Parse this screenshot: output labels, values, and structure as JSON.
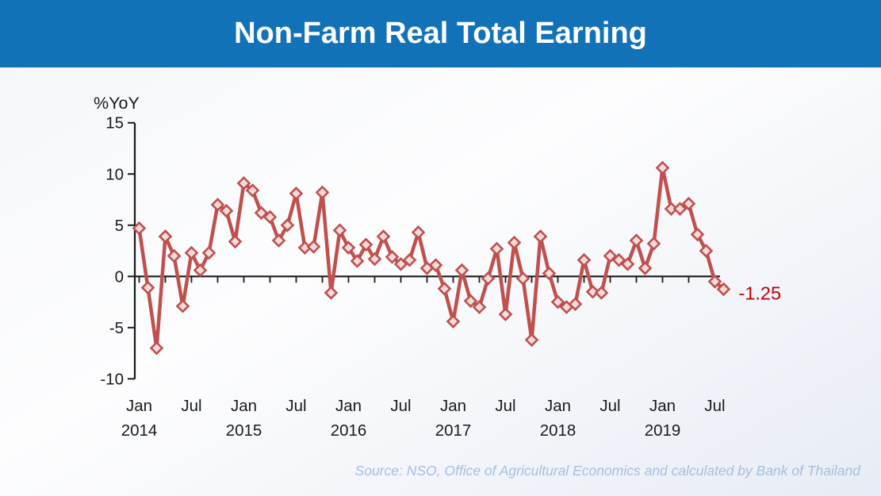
{
  "header": {
    "title": "Non-Farm Real Total Earning",
    "background_color": "#1272b8",
    "text_color": "#ffffff"
  },
  "footer": {
    "source": "Source: NSO, Office of Agricultural Economics and calculated by Bank of Thailand",
    "color": "#a7bedd"
  },
  "chart_data": {
    "type": "line",
    "title": "Non-Farm Real Total Earning",
    "ylabel": "%YoY",
    "xlabel": "",
    "ylim": [
      -10,
      15
    ],
    "yticks": [
      15,
      10,
      5,
      0,
      -5,
      -10
    ],
    "x_start": "Jan 2014",
    "frequency": "monthly",
    "grid": false,
    "legend": "none",
    "minor_tick_interval_months": 3,
    "series": [
      {
        "name": "Non-Farm Real Total Earning (%YoY)",
        "values": [
          4.7,
          -1.1,
          -7.0,
          3.9,
          2.0,
          -2.9,
          2.3,
          0.6,
          2.3,
          7.0,
          6.4,
          3.4,
          9.1,
          8.4,
          6.2,
          5.8,
          3.5,
          5.0,
          8.1,
          2.8,
          2.9,
          8.2,
          -1.6,
          4.5,
          2.8,
          1.5,
          3.1,
          1.7,
          3.9,
          1.9,
          1.2,
          1.6,
          4.3,
          0.8,
          1.1,
          -1.2,
          -4.4,
          0.6,
          -2.4,
          -3.0,
          -0.2,
          2.7,
          -3.7,
          3.3,
          -0.2,
          -6.2,
          3.9,
          0.3,
          -2.5,
          -3.0,
          -2.7,
          1.6,
          -1.5,
          -1.6,
          2.0,
          1.6,
          1.2,
          3.5,
          0.8,
          3.2,
          10.6,
          6.6,
          6.6,
          7.1,
          4.1,
          2.5,
          -0.5,
          -1.25
        ]
      }
    ],
    "x_ticks": [
      {
        "index": 0,
        "label": "Jan",
        "year": "2014"
      },
      {
        "index": 6,
        "label": "Jul"
      },
      {
        "index": 12,
        "label": "Jan",
        "year": "2015"
      },
      {
        "index": 18,
        "label": "Jul"
      },
      {
        "index": 24,
        "label": "Jan",
        "year": "2016"
      },
      {
        "index": 30,
        "label": "Jul"
      },
      {
        "index": 36,
        "label": "Jan",
        "year": "2017"
      },
      {
        "index": 42,
        "label": "Jul"
      },
      {
        "index": 48,
        "label": "Jan",
        "year": "2018"
      },
      {
        "index": 54,
        "label": "Jul"
      },
      {
        "index": 60,
        "label": "Jan",
        "year": "2019"
      },
      {
        "index": 66,
        "label": "Jul"
      }
    ],
    "annotation": {
      "text": "-1.25",
      "color": "#c00000"
    },
    "line_color": "#c0504d",
    "marker": {
      "shape": "diamond",
      "fill": "#f2dcdb",
      "border": "#c0504d"
    },
    "axis_color": "#1a1a1a"
  }
}
